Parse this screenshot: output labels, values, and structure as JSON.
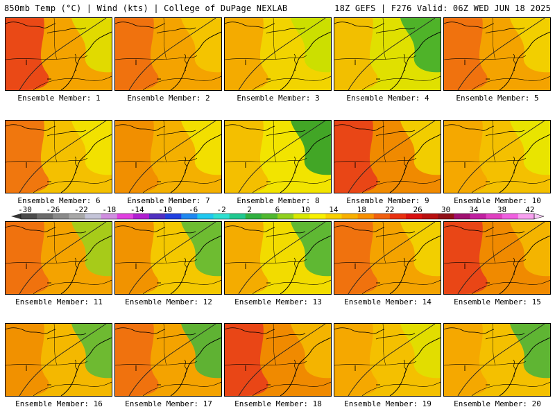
{
  "header": {
    "left": "850mb Temp (°C) | Wind (kts) | College of DuPage NEXLAB",
    "right": "18Z GEFS | F276 Valid: 06Z WED JUN 18 2025"
  },
  "members": [
    {
      "label": "Ensemble Member: 1",
      "base": "#f4a300",
      "hot": "#e8391a",
      "cool": "#dfe000"
    },
    {
      "label": "Ensemble Member: 2",
      "base": "#f4a300",
      "hot": "#ee6a10",
      "cool": "#f4c800"
    },
    {
      "label": "Ensemble Member: 3",
      "base": "#f2d400",
      "hot": "#f4a300",
      "cool": "#c8e000"
    },
    {
      "label": "Ensemble Member: 4",
      "base": "#e0e000",
      "hot": "#f4b800",
      "cool": "#3fae2e"
    },
    {
      "label": "Ensemble Member: 5",
      "base": "#f4a300",
      "hot": "#ee6a10",
      "cool": "#f2d400"
    },
    {
      "label": "Ensemble Member: 6",
      "base": "#f4c000",
      "hot": "#ee6a10",
      "cool": "#f2e400"
    },
    {
      "label": "Ensemble Member: 7",
      "base": "#f4b000",
      "hot": "#f08a00",
      "cool": "#f2e400"
    },
    {
      "label": "Ensemble Member: 8",
      "base": "#f2e400",
      "hot": "#f4b800",
      "cool": "#2f9e2a"
    },
    {
      "label": "Ensemble Member: 9",
      "base": "#f08a00",
      "hot": "#e8391a",
      "cool": "#f2d400"
    },
    {
      "label": "Ensemble Member: 10",
      "base": "#f4c000",
      "hot": "#f4a300",
      "cool": "#e8e800"
    },
    {
      "label": "Ensemble Member: 11",
      "base": "#f4a300",
      "hot": "#ee6a10",
      "cool": "#9ecf1c"
    },
    {
      "label": "Ensemble Member: 12",
      "base": "#f4c800",
      "hot": "#f08a00",
      "cool": "#5fba36"
    },
    {
      "label": "Ensemble Member: 13",
      "base": "#f2dc00",
      "hot": "#f4a300",
      "cool": "#4fb438"
    },
    {
      "label": "Ensemble Member: 14",
      "base": "#f4a300",
      "hot": "#ee6a10",
      "cool": "#f2d400"
    },
    {
      "label": "Ensemble Member: 15",
      "base": "#f08a00",
      "hot": "#e8391a",
      "cool": "#f4b800"
    },
    {
      "label": "Ensemble Member: 16",
      "base": "#f4b800",
      "hot": "#f08a00",
      "cool": "#5fba36"
    },
    {
      "label": "Ensemble Member: 17",
      "base": "#f4a300",
      "hot": "#ee6a10",
      "cool": "#4fb438"
    },
    {
      "label": "Ensemble Member: 18",
      "base": "#f08a00",
      "hot": "#e8391a",
      "cool": "#f4b800"
    },
    {
      "label": "Ensemble Member: 19",
      "base": "#f4c000",
      "hot": "#f4a300",
      "cool": "#e0e000"
    },
    {
      "label": "Ensemble Member: 20",
      "base": "#f4c000",
      "hot": "#f4a300",
      "cool": "#4fb438"
    }
  ],
  "colorbar": {
    "labels": [
      "-30",
      "-26",
      "-22",
      "-18",
      "-14",
      "-10",
      "-6",
      "-2",
      "2",
      "6",
      "10",
      "14",
      "18",
      "22",
      "26",
      "30",
      "34",
      "38",
      "42"
    ],
    "colors": [
      "#4b4b4b",
      "#6b6b6b",
      "#8a8a8a",
      "#a8a8a8",
      "#c4c4d8",
      "#d08ee0",
      "#e040e0",
      "#b020d0",
      "#5030c0",
      "#2040e0",
      "#2088f0",
      "#20c8f0",
      "#30e0d0",
      "#20c890",
      "#30b040",
      "#50b830",
      "#90d020",
      "#d8e800",
      "#f8f000",
      "#f8d000",
      "#f8b000",
      "#f89000",
      "#f06010",
      "#e83010",
      "#d81010",
      "#b81010",
      "#901018",
      "#a01070",
      "#c020a0",
      "#e040c0",
      "#f060e0",
      "#f8a0f0"
    ]
  }
}
